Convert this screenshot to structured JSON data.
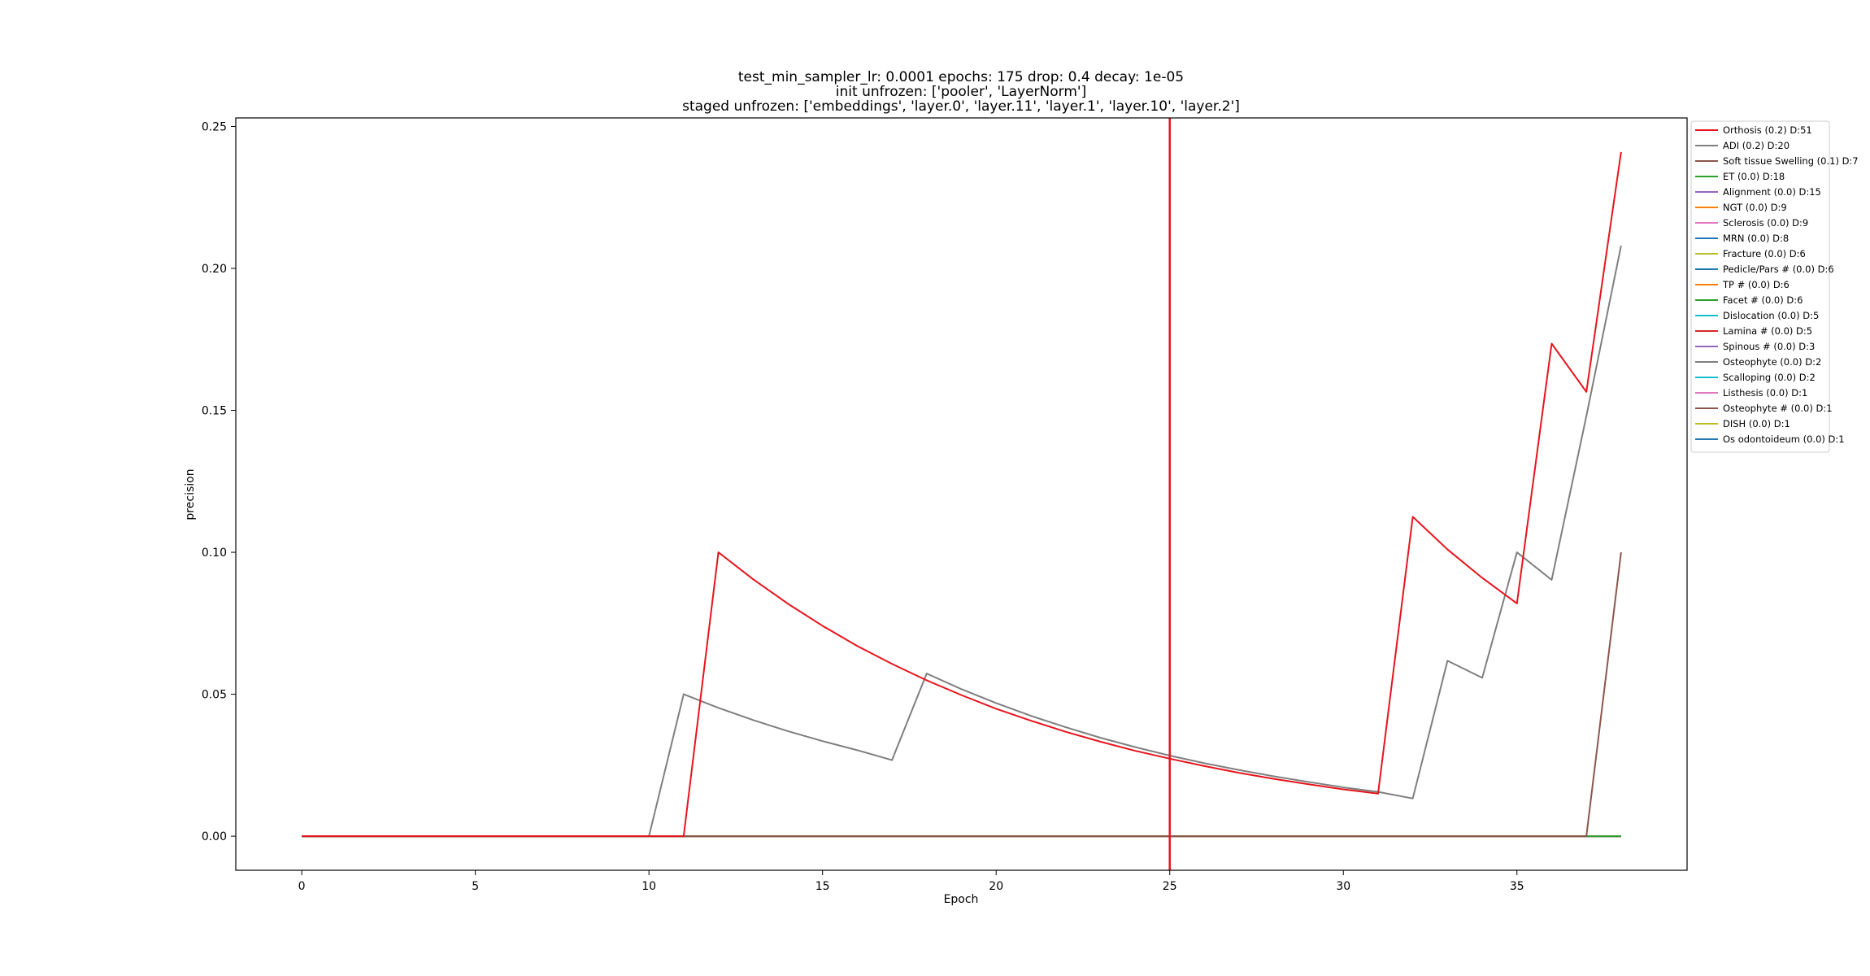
{
  "chart_data": {
    "type": "line",
    "title_lines": [
      "test_min_sampler_lr: 0.0001 epochs: 175 drop: 0.4 decay: 1e-05",
      "init unfrozen: ['pooler', 'LayerNorm']",
      "staged unfrozen: ['embeddings', 'layer.0', 'layer.11', 'layer.1', 'layer.10', 'layer.2']"
    ],
    "xlabel": "Epoch",
    "ylabel": "precision",
    "xlim": [
      -1.9,
      39.9
    ],
    "ylim": [
      -0.012,
      0.253
    ],
    "xticks": [
      0,
      5,
      10,
      15,
      20,
      25,
      30,
      35
    ],
    "yticks": [
      0.0,
      0.05,
      0.1,
      0.15,
      0.2,
      0.25
    ],
    "ytick_labels": [
      "0.00",
      "0.05",
      "0.10",
      "0.15",
      "0.20",
      "0.25"
    ],
    "grid": false,
    "legend_position": "outside-right-top",
    "vline": {
      "x": 25,
      "color": "#e8141c"
    },
    "series": [
      {
        "name": "Orthosis (0.2) D:51",
        "color": "#e8141c",
        "x": [
          0,
          11,
          12,
          13,
          14,
          15,
          16,
          17,
          18,
          19,
          20,
          21,
          22,
          23,
          24,
          25,
          26,
          27,
          28,
          29,
          30,
          31,
          32,
          33,
          34,
          35,
          36,
          37,
          38
        ],
        "y": [
          0,
          0,
          0.1,
          0.0905,
          0.0819,
          0.0741,
          0.067,
          0.0607,
          0.0549,
          0.0497,
          0.0449,
          0.0407,
          0.0368,
          0.0333,
          0.0301,
          0.0273,
          0.0247,
          0.0223,
          0.0202,
          0.0183,
          0.0165,
          0.015,
          0.1125,
          0.101,
          0.091,
          0.082,
          0.1735,
          0.1565,
          0.241
        ]
      },
      {
        "name": "ADI (0.2) D:20",
        "color": "#7f7f7f",
        "x": [
          0,
          10,
          11,
          12,
          13,
          14,
          15,
          16,
          17,
          18,
          19,
          20,
          21,
          22,
          23,
          24,
          25,
          26,
          27,
          28,
          29,
          30,
          31,
          32,
          33,
          34,
          35,
          36,
          37,
          38
        ],
        "y": [
          0,
          0,
          0.05,
          0.0452,
          0.0409,
          0.037,
          0.0335,
          0.0303,
          0.0268,
          0.0573,
          0.0518,
          0.0469,
          0.0424,
          0.0384,
          0.0347,
          0.0314,
          0.0284,
          0.0257,
          0.0233,
          0.0211,
          0.0191,
          0.0172,
          0.0156,
          0.0133,
          0.0618,
          0.0558,
          0.1,
          0.0903,
          0.148,
          0.208
        ]
      },
      {
        "name": "Soft tissue Swelling (0.1) D:7",
        "color": "#8c564b",
        "x": [
          0,
          37,
          38
        ],
        "y": [
          0,
          0,
          0.1
        ]
      },
      {
        "name": "ET (0.0) D:18",
        "color": "#2ca02c",
        "x": [
          0,
          38
        ],
        "y": [
          0,
          0
        ]
      },
      {
        "name": "Alignment (0.0) D:15",
        "color": "#9467bd",
        "x": [
          0,
          38
        ],
        "y": [
          0,
          0
        ]
      },
      {
        "name": "NGT (0.0) D:9",
        "color": "#ff7f0e",
        "x": [
          0,
          38
        ],
        "y": [
          0,
          0
        ]
      },
      {
        "name": "Sclerosis (0.0) D:9",
        "color": "#e377c2",
        "x": [
          0,
          38
        ],
        "y": [
          0,
          0
        ]
      },
      {
        "name": "MRN (0.0) D:8",
        "color": "#1f77b4",
        "x": [
          0,
          38
        ],
        "y": [
          0,
          0
        ]
      },
      {
        "name": "Fracture (0.0) D:6",
        "color": "#bcbd22",
        "x": [
          0,
          38
        ],
        "y": [
          0,
          0
        ]
      },
      {
        "name": "Pedicle/Pars # (0.0) D:6",
        "color": "#1f77b4",
        "x": [
          0,
          38
        ],
        "y": [
          0,
          0
        ]
      },
      {
        "name": "TP # (0.0) D:6",
        "color": "#ff7f0e",
        "x": [
          0,
          38
        ],
        "y": [
          0,
          0
        ]
      },
      {
        "name": "Facet # (0.0) D:6",
        "color": "#2ca02c",
        "x": [
          0,
          38
        ],
        "y": [
          0,
          0
        ]
      },
      {
        "name": "Dislocation (0.0) D:5",
        "color": "#17becf",
        "x": [
          0,
          38
        ],
        "y": [
          0,
          0
        ]
      },
      {
        "name": "Lamina # (0.0) D:5",
        "color": "#d62728",
        "x": [
          0,
          38
        ],
        "y": [
          0,
          0
        ]
      },
      {
        "name": "Spinous # (0.0) D:3",
        "color": "#9467bd",
        "x": [
          0,
          38
        ],
        "y": [
          0,
          0
        ]
      },
      {
        "name": "Osteophyte (0.0) D:2",
        "color": "#7f7f7f",
        "x": [
          0,
          38
        ],
        "y": [
          0,
          0
        ]
      },
      {
        "name": "Scalloping (0.0) D:2",
        "color": "#17becf",
        "x": [
          0,
          38
        ],
        "y": [
          0,
          0
        ]
      },
      {
        "name": "Listhesis (0.0) D:1",
        "color": "#e377c2",
        "x": [
          0,
          38
        ],
        "y": [
          0,
          0
        ]
      },
      {
        "name": "Osteophyte # (0.0) D:1",
        "color": "#8c564b",
        "x": [
          0,
          38
        ],
        "y": [
          0,
          0
        ]
      },
      {
        "name": "DISH (0.0) D:1",
        "color": "#bcbd22",
        "x": [
          0,
          38
        ],
        "y": [
          0,
          0
        ]
      },
      {
        "name": "Os odontoideum (0.0) D:1",
        "color": "#1f77b4",
        "x": [
          0,
          38
        ],
        "y": [
          0,
          0
        ]
      }
    ]
  }
}
